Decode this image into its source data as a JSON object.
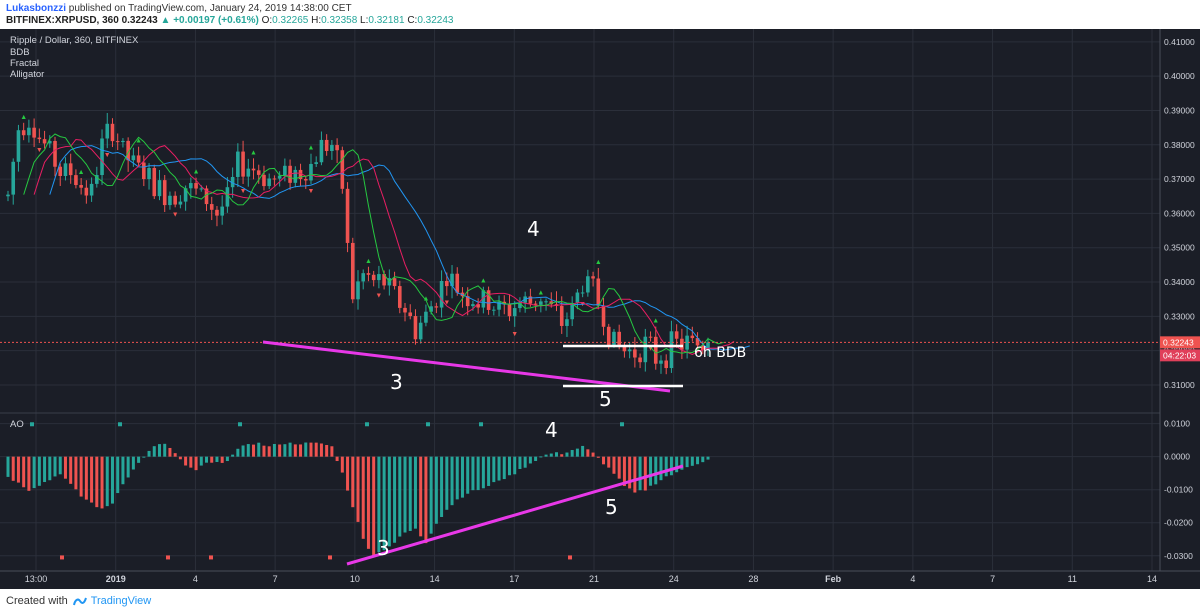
{
  "header": {
    "author": "Lukasbonzzi",
    "published": "published on TradingView.com, January 24, 2019 14:38:00 CET",
    "symbol_line": "BITFINEX:XRPUSD, 360",
    "last": "0.32243",
    "change": "▲ +0.00197 (+0.61%)",
    "o_label": "O:",
    "o_val": "0.32265",
    "h_label": "H:",
    "h_val": "0.32358",
    "l_label": "L:",
    "l_val": "0.32181",
    "c_label": "C:",
    "c_val": "0.32243"
  },
  "legend": {
    "title": "Ripple / Dollar, 360, BITFINEX",
    "indicators": [
      "BDB",
      "Fractal",
      "Alligator"
    ]
  },
  "ao_label": "AO",
  "price_axis": {
    "ticks": [
      "0.41000",
      "0.40000",
      "0.39000",
      "0.38000",
      "0.37000",
      "0.36000",
      "0.35000",
      "0.34000",
      "0.33000",
      "0.32000",
      "0.31000"
    ],
    "last_price": "0.32243",
    "countdown": "04:22:03"
  },
  "ao_axis": {
    "ticks": [
      "0.0100",
      "0.0000",
      "-0.0100",
      "-0.0200",
      "-0.0300"
    ]
  },
  "time_axis": {
    "labels": [
      "13:00",
      "2019",
      "4",
      "7",
      "10",
      "14",
      "17",
      "21",
      "24",
      "28",
      "Feb",
      "4",
      "7",
      "11",
      "14"
    ]
  },
  "annotations": {
    "price": [
      "3",
      "4",
      "5"
    ],
    "bdb": "6h BDB",
    "ao": [
      "3",
      "4",
      "5"
    ]
  },
  "colors": {
    "up": "#26a69a",
    "down": "#ef5350",
    "bg": "#1b1e27",
    "grid": "#2b2f3a",
    "magenta": "#e838e8",
    "lips": "#26c941",
    "teeth": "#e91e63",
    "jaw": "#2196f3",
    "last_price": "#ef5350"
  },
  "footer": {
    "created_with": "Created with",
    "brand": "TradingView"
  },
  "chart_data": [
    {
      "type": "candlestick",
      "title": "Ripple / Dollar, 360, BITFINEX",
      "ylim": [
        0.303,
        0.412
      ],
      "x_range": [
        "Dec 30 2018",
        "Feb 15 2019"
      ],
      "approx_price_path": [
        [
          0,
          0.365
        ],
        [
          2,
          0.385
        ],
        [
          4,
          0.388
        ],
        [
          6,
          0.382
        ],
        [
          8,
          0.378
        ],
        [
          10,
          0.372
        ],
        [
          12,
          0.372
        ],
        [
          14,
          0.368
        ],
        [
          16,
          0.366
        ],
        [
          18,
          0.38
        ],
        [
          20,
          0.385
        ],
        [
          22,
          0.378
        ],
        [
          24,
          0.374
        ],
        [
          26,
          0.372
        ],
        [
          28,
          0.368
        ],
        [
          30,
          0.366
        ],
        [
          32,
          0.366
        ],
        [
          34,
          0.368
        ],
        [
          36,
          0.366
        ],
        [
          38,
          0.364
        ],
        [
          40,
          0.36
        ],
        [
          42,
          0.364
        ],
        [
          44,
          0.374
        ],
        [
          46,
          0.374
        ],
        [
          48,
          0.372
        ],
        [
          50,
          0.37
        ],
        [
          52,
          0.37
        ],
        [
          54,
          0.372
        ],
        [
          56,
          0.372
        ],
        [
          58,
          0.374
        ],
        [
          60,
          0.38
        ],
        [
          62,
          0.38
        ],
        [
          64,
          0.368
        ],
        [
          65,
          0.35
        ],
        [
          66,
          0.336
        ],
        [
          68,
          0.342
        ],
        [
          70,
          0.34
        ],
        [
          72,
          0.34
        ],
        [
          74,
          0.336
        ],
        [
          76,
          0.332
        ],
        [
          78,
          0.326
        ],
        [
          80,
          0.33
        ],
        [
          82,
          0.336
        ],
        [
          84,
          0.342
        ],
        [
          86,
          0.338
        ],
        [
          88,
          0.336
        ],
        [
          90,
          0.334
        ],
        [
          92,
          0.334
        ],
        [
          94,
          0.332
        ],
        [
          96,
          0.332
        ],
        [
          98,
          0.334
        ],
        [
          100,
          0.334
        ],
        [
          102,
          0.336
        ],
        [
          104,
          0.332
        ],
        [
          106,
          0.328
        ],
        [
          108,
          0.332
        ],
        [
          110,
          0.34
        ],
        [
          112,
          0.338
        ],
        [
          114,
          0.33
        ],
        [
          116,
          0.322
        ],
        [
          118,
          0.32
        ],
        [
          120,
          0.32
        ],
        [
          122,
          0.322
        ],
        [
          124,
          0.318
        ],
        [
          126,
          0.32
        ],
        [
          128,
          0.322
        ],
        [
          130,
          0.322
        ],
        [
          132,
          0.322
        ],
        [
          134,
          0.322
        ]
      ],
      "last_close": 0.32243,
      "overlays": [
        "Alligator jaw (blue)",
        "Alligator teeth (red)",
        "Alligator lips (green)",
        "Fractals",
        "BDB"
      ]
    },
    {
      "type": "bar",
      "title": "AO",
      "ylim": [
        -0.034,
        0.012
      ],
      "approx_values": [
        [
          0,
          -0.006
        ],
        [
          4,
          -0.01
        ],
        [
          8,
          -0.007
        ],
        [
          10,
          -0.005
        ],
        [
          14,
          -0.012
        ],
        [
          18,
          -0.016
        ],
        [
          20,
          -0.014
        ],
        [
          22,
          -0.008
        ],
        [
          26,
          0.0
        ],
        [
          28,
          0.003
        ],
        [
          30,
          0.004
        ],
        [
          32,
          0.001
        ],
        [
          34,
          -0.003
        ],
        [
          36,
          -0.004
        ],
        [
          38,
          -0.002
        ],
        [
          40,
          -0.002
        ],
        [
          42,
          -0.001
        ],
        [
          44,
          0.002
        ],
        [
          46,
          0.004
        ],
        [
          48,
          0.004
        ],
        [
          50,
          0.003
        ],
        [
          52,
          0.004
        ],
        [
          54,
          0.004
        ],
        [
          56,
          0.004
        ],
        [
          58,
          0.004
        ],
        [
          60,
          0.004
        ],
        [
          62,
          0.003
        ],
        [
          64,
          -0.005
        ],
        [
          66,
          -0.015
        ],
        [
          68,
          -0.025
        ],
        [
          70,
          -0.03
        ],
        [
          72,
          -0.028
        ],
        [
          74,
          -0.026
        ],
        [
          76,
          -0.023
        ],
        [
          78,
          -0.022
        ],
        [
          80,
          -0.026
        ],
        [
          82,
          -0.02
        ],
        [
          84,
          -0.016
        ],
        [
          86,
          -0.013
        ],
        [
          88,
          -0.011
        ],
        [
          90,
          -0.01
        ],
        [
          92,
          -0.009
        ],
        [
          94,
          -0.007
        ],
        [
          96,
          -0.006
        ],
        [
          98,
          -0.004
        ],
        [
          100,
          -0.002
        ],
        [
          102,
          0.0
        ],
        [
          104,
          0.001
        ],
        [
          106,
          0.001
        ],
        [
          108,
          0.002
        ],
        [
          110,
          0.003
        ],
        [
          112,
          0.001
        ],
        [
          114,
          -0.002
        ],
        [
          116,
          -0.005
        ],
        [
          118,
          -0.009
        ],
        [
          120,
          -0.011
        ],
        [
          122,
          -0.01
        ],
        [
          124,
          -0.008
        ],
        [
          126,
          -0.006
        ],
        [
          128,
          -0.005
        ],
        [
          130,
          -0.003
        ],
        [
          132,
          -0.002
        ],
        [
          134,
          -0.001
        ]
      ]
    }
  ]
}
